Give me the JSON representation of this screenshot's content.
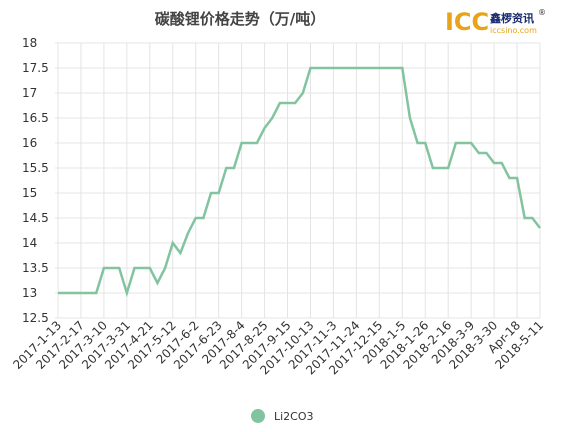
{
  "chart_data": {
    "type": "line",
    "title": "碳酸锂价格走势（万/吨）",
    "logo": {
      "mark": "ICC",
      "name": "鑫椤资讯",
      "reg": "®",
      "site": "iccsino.com"
    },
    "categories": [
      "2017-1-13",
      null,
      null,
      "2017-2-17",
      null,
      null,
      "2017-3-10",
      null,
      null,
      "2017-3-31",
      null,
      null,
      "2017-4-21",
      null,
      null,
      "2017-5-12",
      null,
      null,
      "2017-6-2",
      null,
      null,
      "2017-6-23",
      null,
      null,
      "2017-8-4",
      null,
      null,
      "2017-8-25",
      null,
      null,
      "2017-9-15",
      null,
      null,
      "2017-10-13",
      null,
      null,
      "2017-11-3",
      null,
      null,
      "2017-11-24",
      null,
      null,
      "2017-12-15",
      null,
      null,
      "2018-1-5",
      null,
      null,
      "2018-1-26",
      null,
      null,
      "2018-2-16",
      null,
      null,
      "2018-3-9",
      null,
      null,
      "2018-3-30",
      null,
      null,
      "Apr-18",
      null,
      null,
      "2018-5-11"
    ],
    "series": [
      {
        "name": "Li2CO3",
        "color": "#82c49f",
        "values": [
          13,
          13,
          13,
          13,
          13,
          13,
          13.5,
          13.5,
          13.5,
          13,
          13.5,
          13.5,
          13.5,
          13.2,
          13.5,
          14,
          13.8,
          14.2,
          14.5,
          14.5,
          15,
          15,
          15.5,
          15.5,
          16,
          16,
          16,
          16.3,
          16.5,
          16.8,
          16.8,
          16.8,
          17,
          17.5,
          17.5,
          17.5,
          17.5,
          17.5,
          17.5,
          17.5,
          17.5,
          17.5,
          17.5,
          17.5,
          17.5,
          17.5,
          16.5,
          16,
          16,
          15.5,
          15.5,
          15.5,
          16,
          16,
          16,
          15.8,
          15.8,
          15.6,
          15.6,
          15.3,
          15.3,
          14.5,
          14.5,
          14.3
        ]
      }
    ],
    "ylim": [
      12.5,
      18
    ],
    "yticks": [
      12.5,
      13,
      13.5,
      14,
      14.5,
      15,
      15.5,
      16,
      16.5,
      17,
      17.5,
      18
    ],
    "grid": true
  }
}
